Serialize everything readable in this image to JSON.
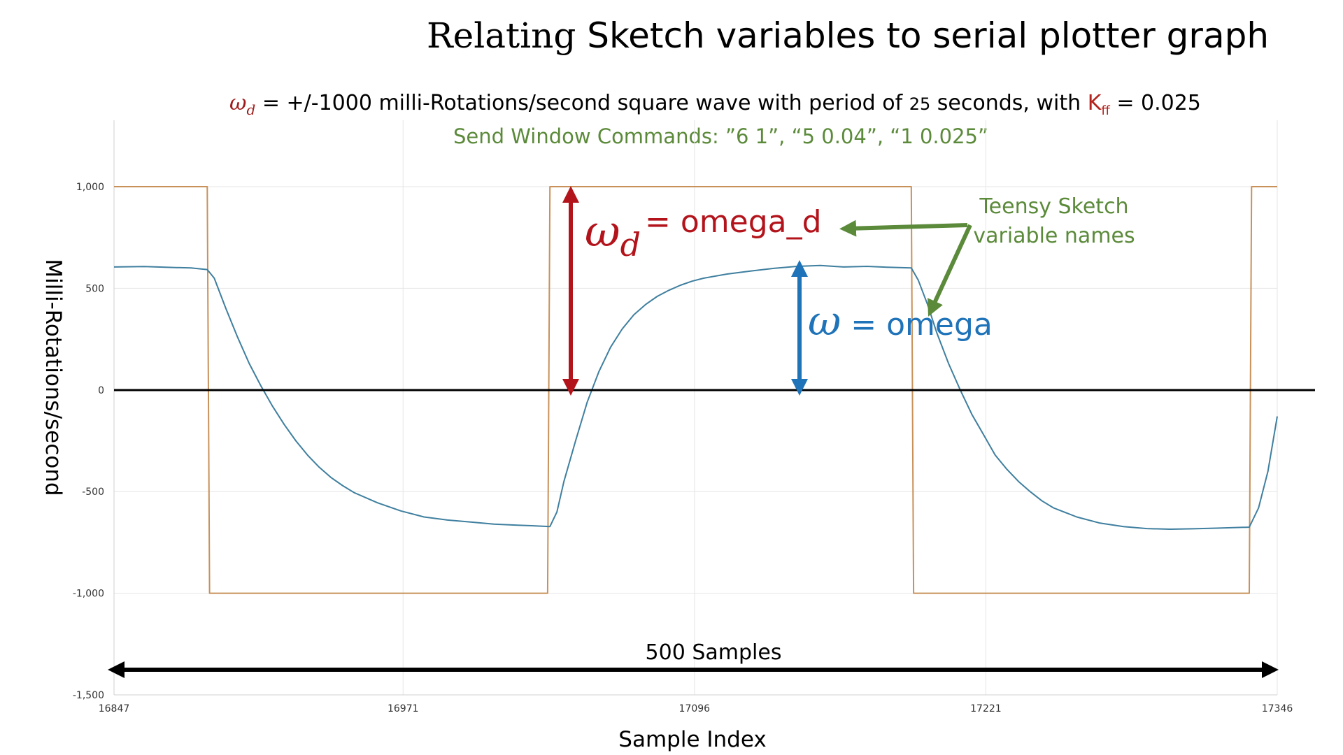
{
  "title": {
    "word1": "Relating",
    "rest": " Sketch variables to serial plotter graph"
  },
  "subtitle": {
    "symbol": "ω",
    "symbol_sub": "d",
    "equals": " = ",
    "text": " +/-1000 milli-Rotations/second square wave with period of ",
    "period": "25",
    "text2": " seconds, with ",
    "k": "K",
    "k_sub": "ff",
    "k_value": " = 0.025"
  },
  "commands": "Send Window Commands: ”6 1”, “5 0.04”, “1 0.025”",
  "colors": {
    "omega_d_line": "#c8915a",
    "omega_line": "#3f7f9f",
    "red_annotation": "#b3141b",
    "blue_annotation": "#1f73b8",
    "green_annotation": "#5b8a3a",
    "axis_text": "#333333",
    "gridline": "#e6e6e6"
  },
  "annotations": {
    "omega_d_symbol": "ω",
    "omega_d_sub": "d",
    "omega_d_label": "= omega_d",
    "omega_symbol": "ω",
    "omega_label": " = omega",
    "teensy_line1": "Teensy Sketch",
    "teensy_line2": "variable names",
    "samples_label": "500 Samples"
  },
  "chart_data": {
    "type": "line",
    "xlabel": "Sample Index",
    "ylabel": "Milli-Rotations/second",
    "xlim": [
      16847,
      17346
    ],
    "ylim": [
      -1500,
      1000
    ],
    "x_ticks": [
      16847,
      16971,
      17096,
      17221,
      17346
    ],
    "y_ticks": [
      1000,
      500,
      0,
      -500,
      -1000,
      -1500
    ],
    "y_tick_labels": [
      "1,000",
      "500",
      "0",
      "-500",
      "-1,000",
      "-1,500"
    ],
    "grid": "vertical",
    "series": [
      {
        "name": "omega_d",
        "x": [
          16847,
          16887,
          16888,
          17033,
          17034,
          17189,
          17190,
          17334,
          17335,
          17346
        ],
        "y": [
          1000,
          1000,
          -1000,
          -1000,
          1000,
          1000,
          -1000,
          -1000,
          1000,
          1000
        ]
      },
      {
        "name": "omega",
        "x": [
          16847,
          16860,
          16870,
          16880,
          16887,
          16890,
          16895,
          16900,
          16905,
          16910,
          16915,
          16920,
          16925,
          16930,
          16935,
          16940,
          16945,
          16950,
          16960,
          16970,
          16980,
          16990,
          17000,
          17010,
          17020,
          17030,
          17034,
          17037,
          17040,
          17045,
          17050,
          17055,
          17060,
          17065,
          17070,
          17075,
          17080,
          17085,
          17090,
          17095,
          17100,
          17110,
          17120,
          17130,
          17140,
          17150,
          17160,
          17170,
          17180,
          17189,
          17192,
          17196,
          17200,
          17205,
          17210,
          17215,
          17220,
          17225,
          17230,
          17235,
          17240,
          17245,
          17250,
          17260,
          17270,
          17280,
          17290,
          17300,
          17310,
          17320,
          17334,
          17338,
          17342,
          17346
        ],
        "y": [
          605,
          607,
          603,
          600,
          592,
          550,
          400,
          260,
          130,
          20,
          -80,
          -170,
          -250,
          -320,
          -380,
          -430,
          -470,
          -505,
          -555,
          -595,
          -625,
          -640,
          -650,
          -660,
          -665,
          -670,
          -672,
          -600,
          -450,
          -250,
          -60,
          90,
          210,
          300,
          370,
          420,
          460,
          490,
          515,
          535,
          550,
          570,
          585,
          598,
          608,
          612,
          605,
          608,
          603,
          600,
          540,
          420,
          280,
          130,
          0,
          -120,
          -220,
          -320,
          -390,
          -450,
          -500,
          -545,
          -580,
          -625,
          -655,
          -672,
          -682,
          -685,
          -683,
          -680,
          -675,
          -580,
          -400,
          -130
        ]
      }
    ]
  }
}
